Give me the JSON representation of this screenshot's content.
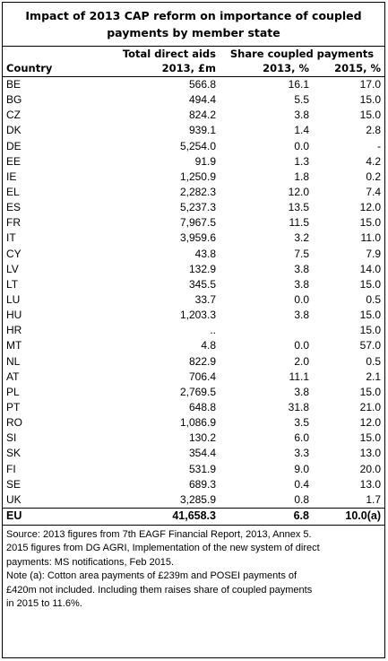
{
  "title": {
    "line1": "Impact of 2013 CAP reform on importance of  coupled",
    "line2": "payments by member state"
  },
  "headers": {
    "total_direct_aids": "Total direct aids",
    "share_coupled_payments": "Share coupled payments",
    "country": "Country",
    "col_2013_m": "2013, £m",
    "col_2013_pct": "2013, %",
    "col_2015_pct": "2015, %"
  },
  "rows": [
    {
      "country": "BE",
      "aids": "566.8",
      "s2013": "16.1",
      "s2015": "17.0"
    },
    {
      "country": "BG",
      "aids": "494.4",
      "s2013": "5.5",
      "s2015": "15.0"
    },
    {
      "country": "CZ",
      "aids": "824.2",
      "s2013": "3.8",
      "s2015": "15.0"
    },
    {
      "country": "DK",
      "aids": "939.1",
      "s2013": "1.4",
      "s2015": "2.8"
    },
    {
      "country": "DE",
      "aids": "5,254.0",
      "s2013": "0.0",
      "s2015": "-"
    },
    {
      "country": "EE",
      "aids": "91.9",
      "s2013": "1.3",
      "s2015": "4.2"
    },
    {
      "country": "IE",
      "aids": "1,250.9",
      "s2013": "1.8",
      "s2015": "0.2"
    },
    {
      "country": "EL",
      "aids": "2,282.3",
      "s2013": "12.0",
      "s2015": "7.4"
    },
    {
      "country": "ES",
      "aids": "5,237.3",
      "s2013": "13.5",
      "s2015": "12.0"
    },
    {
      "country": "FR",
      "aids": "7,967.5",
      "s2013": "11.5",
      "s2015": "15.0"
    },
    {
      "country": "IT",
      "aids": "3,959.6",
      "s2013": "3.2",
      "s2015": "11.0"
    },
    {
      "country": "CY",
      "aids": "43.8",
      "s2013": "7.5",
      "s2015": "7.9"
    },
    {
      "country": "LV",
      "aids": "132.9",
      "s2013": "3.8",
      "s2015": "14.0"
    },
    {
      "country": "LT",
      "aids": "345.5",
      "s2013": "3.8",
      "s2015": "15.0"
    },
    {
      "country": "LU",
      "aids": "33.7",
      "s2013": "0.0",
      "s2015": "0.5"
    },
    {
      "country": "HU",
      "aids": "1,203.3",
      "s2013": "3.8",
      "s2015": "15.0"
    },
    {
      "country": "HR",
      "aids": "..",
      "s2013": "",
      "s2015": "15.0"
    },
    {
      "country": "MT",
      "aids": "4.8",
      "s2013": "0.0",
      "s2015": "57.0"
    },
    {
      "country": "NL",
      "aids": "822.9",
      "s2013": "2.0",
      "s2015": "0.5"
    },
    {
      "country": "AT",
      "aids": "706.4",
      "s2013": "11.1",
      "s2015": "2.1"
    },
    {
      "country": "PL",
      "aids": "2,769.5",
      "s2013": "3.8",
      "s2015": "15.0"
    },
    {
      "country": "PT",
      "aids": "648.8",
      "s2013": "31.8",
      "s2015": "21.0"
    },
    {
      "country": "RO",
      "aids": "1,086.9",
      "s2013": "3.5",
      "s2015": "12.0"
    },
    {
      "country": "SI",
      "aids": "130.2",
      "s2013": "6.0",
      "s2015": "15.0"
    },
    {
      "country": "SK",
      "aids": "354.4",
      "s2013": "3.3",
      "s2015": "13.0"
    },
    {
      "country": "FI",
      "aids": "531.9",
      "s2013": "9.0",
      "s2015": "20.0"
    },
    {
      "country": "SE",
      "aids": "689.3",
      "s2013": "0.4",
      "s2015": "13.0"
    },
    {
      "country": "UK",
      "aids": "3,285.9",
      "s2013": "0.8",
      "s2015": "1.7"
    }
  ],
  "total": {
    "country": "EU",
    "aids": "41,658.3",
    "s2013": "6.8",
    "s2015": "10.0(a)"
  },
  "notes": {
    "source1": "Source:  2013 figures from 7th EAGF Financial Report, 2013, Annex 5.",
    "source2": "2015 figures from DG AGRI, Implementation of the  new system of direct",
    "source3": "payments: MS notifications, Feb 2015.",
    "note1": "Note (a):  Cotton area payments of £239m and POSEI payments of",
    "note2": "£420m not included. Including them raises share of coupled payments",
    "note3": "in 2015 to 11.6%."
  }
}
